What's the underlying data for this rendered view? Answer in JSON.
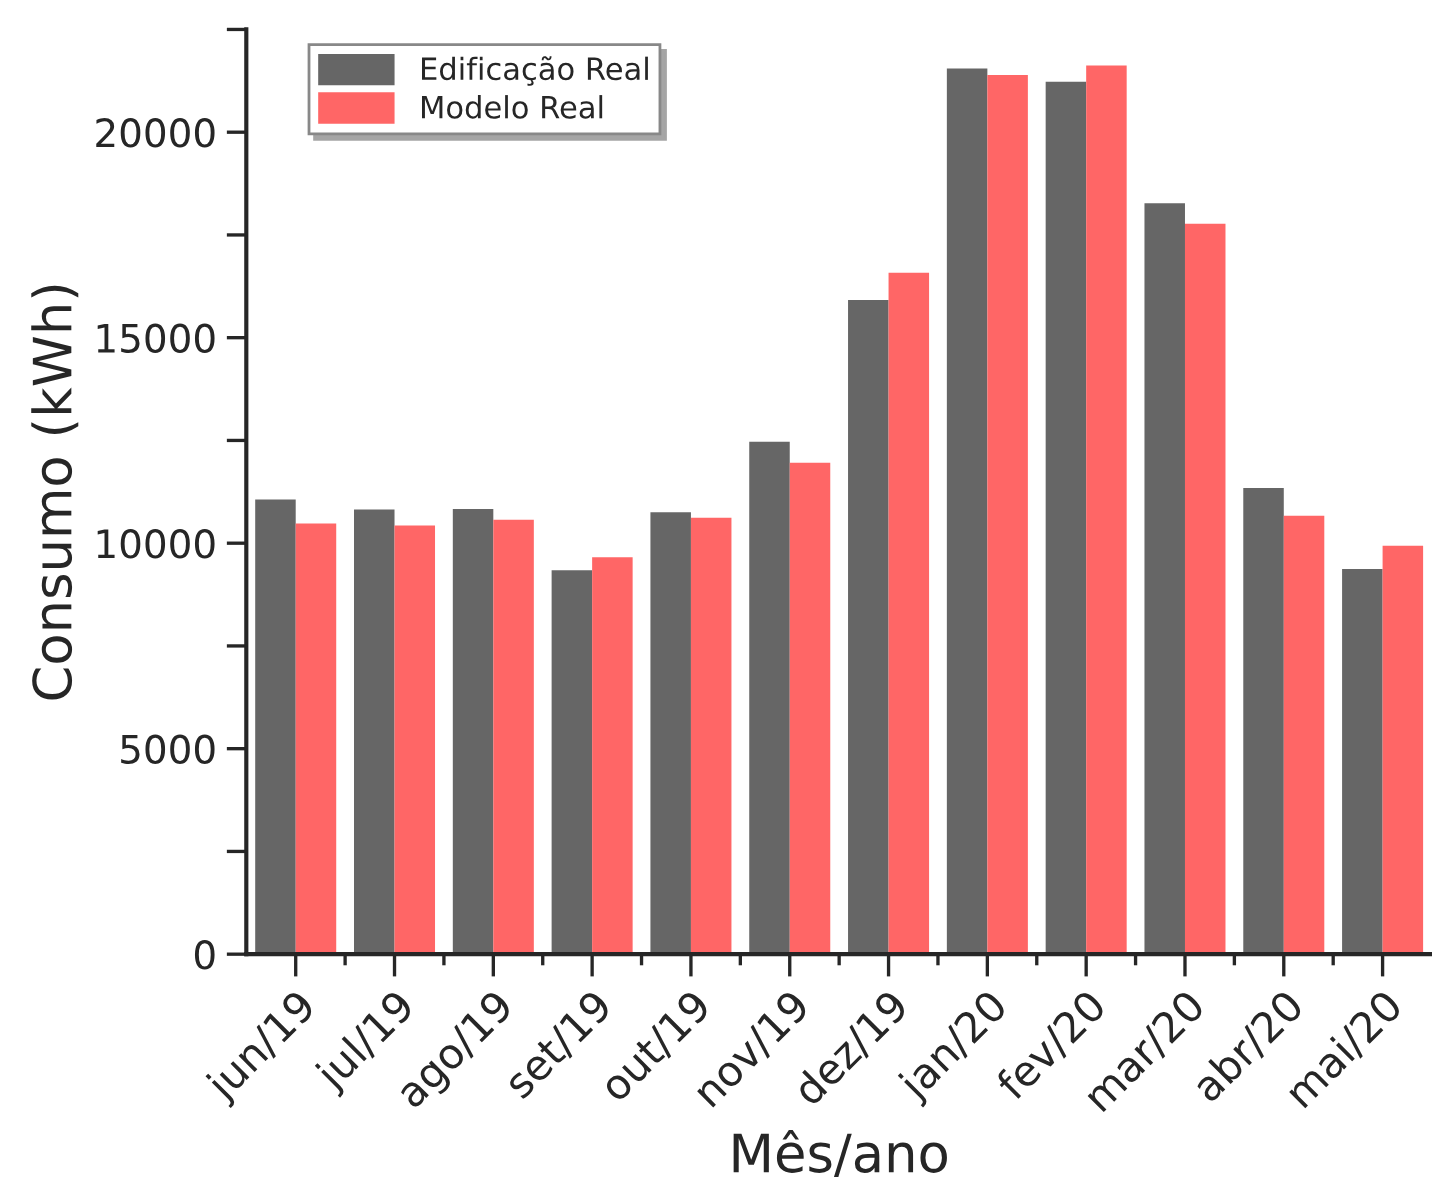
{
  "chart_data": {
    "type": "bar",
    "xlabel": "Mês/ano",
    "ylabel": "Consumo (kWh)",
    "categories": [
      "jun/19",
      "jul/19",
      "ago/19",
      "set/19",
      "out/19",
      "nov/19",
      "dez/19",
      "jan/20",
      "fev/20",
      "mar/20",
      "abr/20",
      "mai/20"
    ],
    "series": [
      {
        "name": "Edificação Real",
        "color": "#666666",
        "values": [
          11060,
          10820,
          10830,
          9340,
          10750,
          12470,
          15920,
          21550,
          21230,
          18270,
          11340,
          9370
        ]
      },
      {
        "name": "Modelo Real",
        "color": "#ff6666",
        "values": [
          10480,
          10430,
          10570,
          9660,
          10620,
          11960,
          16580,
          21390,
          21620,
          17770,
          10670,
          9940
        ]
      }
    ],
    "ylim": [
      0,
      22500
    ],
    "yticks": [
      0,
      {
        "value": 2500,
        "label": null
      },
      5000,
      {
        "value": 7500,
        "label": null
      },
      10000,
      {
        "value": 12500,
        "label": null
      },
      15000,
      {
        "value": 17500,
        "label": null
      },
      20000,
      {
        "value": 22500,
        "label": null
      }
    ],
    "grid": false,
    "legend": "top left"
  }
}
